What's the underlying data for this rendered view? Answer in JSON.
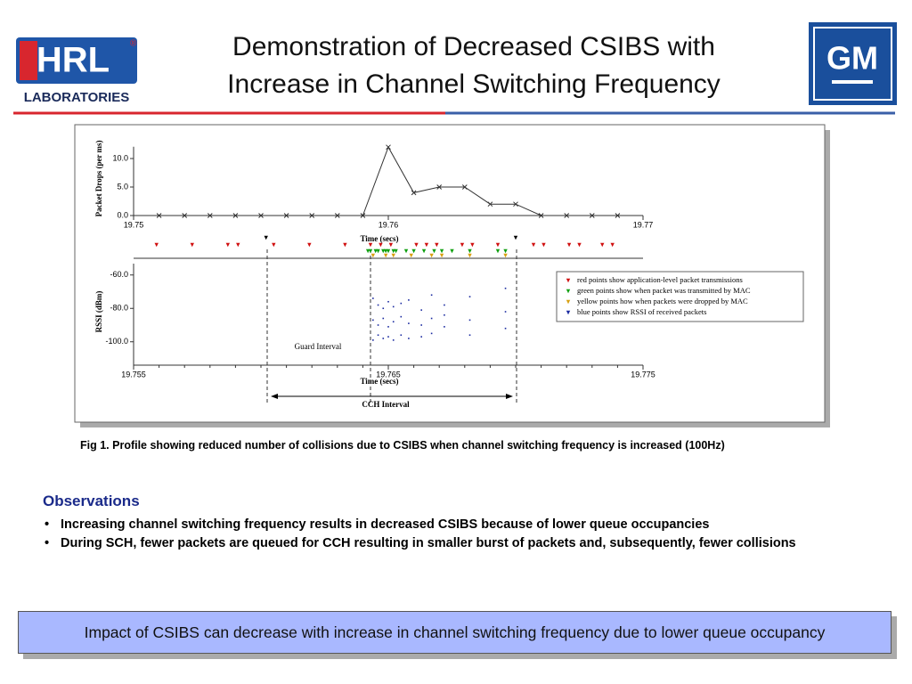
{
  "header": {
    "title_lines": [
      "Demonstration of Decreased CSIBS with",
      "Increase in Channel Switching Frequency"
    ],
    "logo_left": {
      "name": "HRL",
      "mark": "®",
      "sub": "LABORATORIES"
    },
    "logo_right": {
      "name": "GM"
    }
  },
  "chart_data": [
    {
      "type": "line",
      "y_label": "Packet Drops (per ms)",
      "x_label": "Time (secs)",
      "color": "#333333",
      "x": [
        19.751,
        19.752,
        19.753,
        19.754,
        19.755,
        19.756,
        19.757,
        19.758,
        19.759,
        19.76,
        19.761,
        19.762,
        19.763,
        19.764,
        19.765,
        19.766,
        19.767,
        19.768,
        19.769
      ],
      "values": [
        0,
        0,
        0,
        0,
        0,
        0,
        0,
        0,
        0,
        12,
        4,
        5,
        5,
        2,
        2,
        0,
        0,
        0,
        0
      ],
      "xlim": [
        19.75,
        19.77
      ],
      "xticks": [
        19.75,
        19.76,
        19.77
      ],
      "ylim": [
        0,
        13
      ],
      "yticks": [
        {
          "value": 0,
          "label": "0.0"
        },
        {
          "value": 5,
          "label": "5.0"
        },
        {
          "value": 10,
          "label": "10.0"
        }
      ]
    },
    {
      "type": "scatter",
      "y_label": "RSSI (dBm)",
      "x_label": "Time (secs)",
      "xlim": [
        19.755,
        19.775
      ],
      "xticks": [
        19.755,
        19.765,
        19.775
      ],
      "ylim": [
        -114,
        -50
      ],
      "yticks": [
        {
          "value": -60,
          "label": "-60.0"
        },
        {
          "value": -80,
          "label": "-80.0"
        },
        {
          "value": -100,
          "label": "-100.0"
        }
      ],
      "annotations": [
        "Guard Interval",
        "CCH Interval"
      ],
      "series": [
        {
          "name": "red points show application-level packet transmissions",
          "color": "#d01010",
          "x": [
            19.7559,
            19.7573,
            19.7587,
            19.7591,
            19.7605,
            19.7619,
            19.7633,
            19.7643,
            19.7647,
            19.7651,
            19.7661,
            19.7665,
            19.7669,
            19.7679,
            19.7683,
            19.7693,
            19.7707,
            19.7711,
            19.7721,
            19.7725,
            19.7734,
            19.7738
          ]
        },
        {
          "name": "green points show when packet was transmitted by MAC",
          "color": "#10a010",
          "x": [
            19.7642,
            19.7643,
            19.7645,
            19.7646,
            19.7648,
            19.7649,
            19.765,
            19.7652,
            19.7653,
            19.7657,
            19.766,
            19.7664,
            19.7668,
            19.7671,
            19.7675,
            19.7682,
            19.7693,
            19.7696
          ]
        },
        {
          "name": "yellow points how when packets were dropped by MAC",
          "color": "#d8a010",
          "x": [
            19.7644,
            19.7649,
            19.7652,
            19.7659,
            19.7667,
            19.7671,
            19.7682,
            19.7696
          ]
        },
        {
          "name": "blue points show RSSI of received packets",
          "color": "#1a2aa0",
          "x": [
            19.7644,
            19.7644,
            19.7644,
            19.7646,
            19.7646,
            19.7646,
            19.7648,
            19.7648,
            19.7648,
            19.765,
            19.765,
            19.765,
            19.7652,
            19.7652,
            19.7652,
            19.7655,
            19.7655,
            19.7655,
            19.7658,
            19.7658,
            19.7658,
            19.7663,
            19.7663,
            19.7663,
            19.7667,
            19.7667,
            19.7667,
            19.7672,
            19.7672,
            19.7672,
            19.7682,
            19.7682,
            19.7682,
            19.7696,
            19.7696,
            19.7696
          ],
          "values": [
            -74,
            -87,
            -99,
            -78,
            -90,
            -96,
            -80,
            -86,
            -98,
            -76,
            -91,
            -97,
            -79,
            -88,
            -99,
            -77,
            -85,
            -96,
            -75,
            -89,
            -98,
            -81,
            -90,
            -97,
            -72,
            -86,
            -95,
            -78,
            -84,
            -91,
            -73,
            -87,
            -96,
            -68,
            -82,
            -92
          ]
        },
        {
          "color": "#000000",
          "x": [
            19.7602,
            19.77
          ]
        }
      ]
    }
  ],
  "caption": "Fig 1.  Profile showing reduced number of collisions due to CSIBS when channel switching frequency is increased (100Hz)",
  "observations": {
    "heading": "Observations",
    "bullets": [
      "Increasing channel switching frequency results in decreased CSIBS because of lower queue occupancies",
      "During SCH, fewer packets are queued for CCH resulting in smaller burst of packets and, subsequently, fewer collisions"
    ]
  },
  "banner": "Impact of CSIBS can decrease with increase in channel switching frequency due to lower queue occupancy"
}
